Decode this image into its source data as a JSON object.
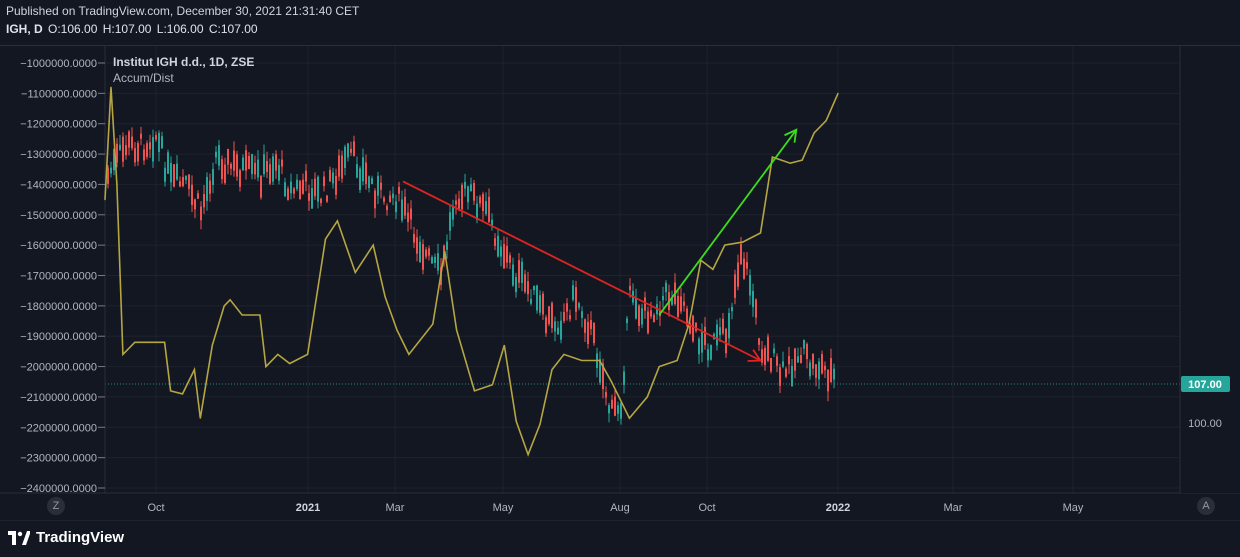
{
  "header": {
    "published": "Published on TradingView.com, December 30, 2021 21:31:40 CET",
    "symbol": "IGH, D",
    "open": "O:106.00",
    "high": "H:107.00",
    "low": "L:106.00",
    "close": "C:107.00"
  },
  "legend": {
    "title": "Institut IGH d.d., 1D, ZSE",
    "indicator": "Accum/Dist"
  },
  "price_label": "107.00",
  "price_label_color": "#26a69a",
  "right_axis_label": "100.00",
  "buttons": {
    "left": "Z",
    "right": "A"
  },
  "footer": {
    "logo_text": "TradingView"
  },
  "colors": {
    "up": "#26a69a",
    "down": "#ef5350",
    "accum_dist": "#b5a642",
    "down_arrow": "#e0241f",
    "up_arrow": "#3ddc1e"
  },
  "chart_data": {
    "type": "candlestick",
    "left_axis": {
      "label": "Accum/Dist",
      "ticks": [
        "-1000000.0000",
        "-1100000.0000",
        "-1200000.0000",
        "-1300000.0000",
        "-1400000.0000",
        "-1500000.0000",
        "-1600000.0000",
        "-1700000.0000",
        "-1800000.0000",
        "-1900000.0000",
        "-2000000.0000",
        "-2100000.0000",
        "-2200000.0000",
        "-2300000.0000",
        "-2400000.0000"
      ],
      "ylim": [
        -2400000,
        -1000000
      ]
    },
    "right_axis": {
      "ticks": [
        "100.00"
      ],
      "last_price": 107.0
    },
    "x_ticks": [
      "Oct",
      "2021",
      "Mar",
      "May",
      "Aug",
      "Oct",
      "2022",
      "Mar",
      "May"
    ],
    "accum_dist_series": [
      [
        2021.66,
        -1450000
      ],
      [
        2021.68,
        -1080000
      ],
      [
        2021.7,
        -1400000
      ],
      [
        2021.72,
        -1960000
      ],
      [
        2021.76,
        -1920000
      ],
      [
        2021.8,
        -1920000
      ],
      [
        2021.86,
        -1920000
      ],
      [
        2021.88,
        -2080000
      ],
      [
        2021.92,
        -2090000
      ],
      [
        2021.96,
        -2010000
      ],
      [
        2021.98,
        -2170000
      ],
      [
        2022.02,
        -1930000
      ],
      [
        2022.06,
        -1800000
      ],
      [
        2022.08,
        -1780000
      ],
      [
        2022.12,
        -1830000
      ],
      [
        2022.18,
        -1830000
      ],
      [
        2022.2,
        -2000000
      ],
      [
        2022.24,
        -1960000
      ],
      [
        2022.28,
        -1990000
      ],
      [
        2022.34,
        -1960000
      ],
      [
        2022.4,
        -1580000
      ],
      [
        2022.44,
        -1520000
      ],
      [
        2022.5,
        -1690000
      ],
      [
        2022.56,
        -1600000
      ],
      [
        2022.6,
        -1770000
      ],
      [
        2022.64,
        -1880000
      ],
      [
        2022.68,
        -1960000
      ],
      [
        2022.76,
        -1860000
      ],
      [
        2022.8,
        -1620000
      ],
      [
        2022.84,
        -1880000
      ],
      [
        2022.9,
        -2080000
      ],
      [
        2022.96,
        -2060000
      ],
      [
        2023.0,
        -1930000
      ],
      [
        2023.04,
        -2180000
      ],
      [
        2023.08,
        -2290000
      ],
      [
        2023.12,
        -2190000
      ],
      [
        2023.16,
        -2010000
      ],
      [
        2023.2,
        -1960000
      ],
      [
        2023.26,
        -1980000
      ],
      [
        2023.32,
        -1980000
      ],
      [
        2023.36,
        -2050000
      ],
      [
        2023.42,
        -2170000
      ],
      [
        2023.48,
        -2100000
      ],
      [
        2023.52,
        -2000000
      ],
      [
        2023.58,
        -1980000
      ],
      [
        2023.62,
        -1860000
      ],
      [
        2023.66,
        -1650000
      ],
      [
        2023.7,
        -1680000
      ],
      [
        2023.74,
        -1600000
      ],
      [
        2023.8,
        -1590000
      ],
      [
        2023.86,
        -1560000
      ],
      [
        2023.9,
        -1310000
      ],
      [
        2023.96,
        -1330000
      ],
      [
        2024.0,
        -1320000
      ],
      [
        2024.04,
        -1230000
      ],
      [
        2024.08,
        -1190000
      ],
      [
        2024.12,
        -1100000
      ]
    ],
    "trendlines": [
      {
        "name": "downtrend",
        "from": [
          2022.66,
          -1390000
        ],
        "to": [
          2023.86,
          -1980000
        ]
      },
      {
        "name": "uptrend",
        "from": [
          2023.52,
          -1830000
        ],
        "to": [
          2023.98,
          -1220000
        ]
      }
    ]
  }
}
